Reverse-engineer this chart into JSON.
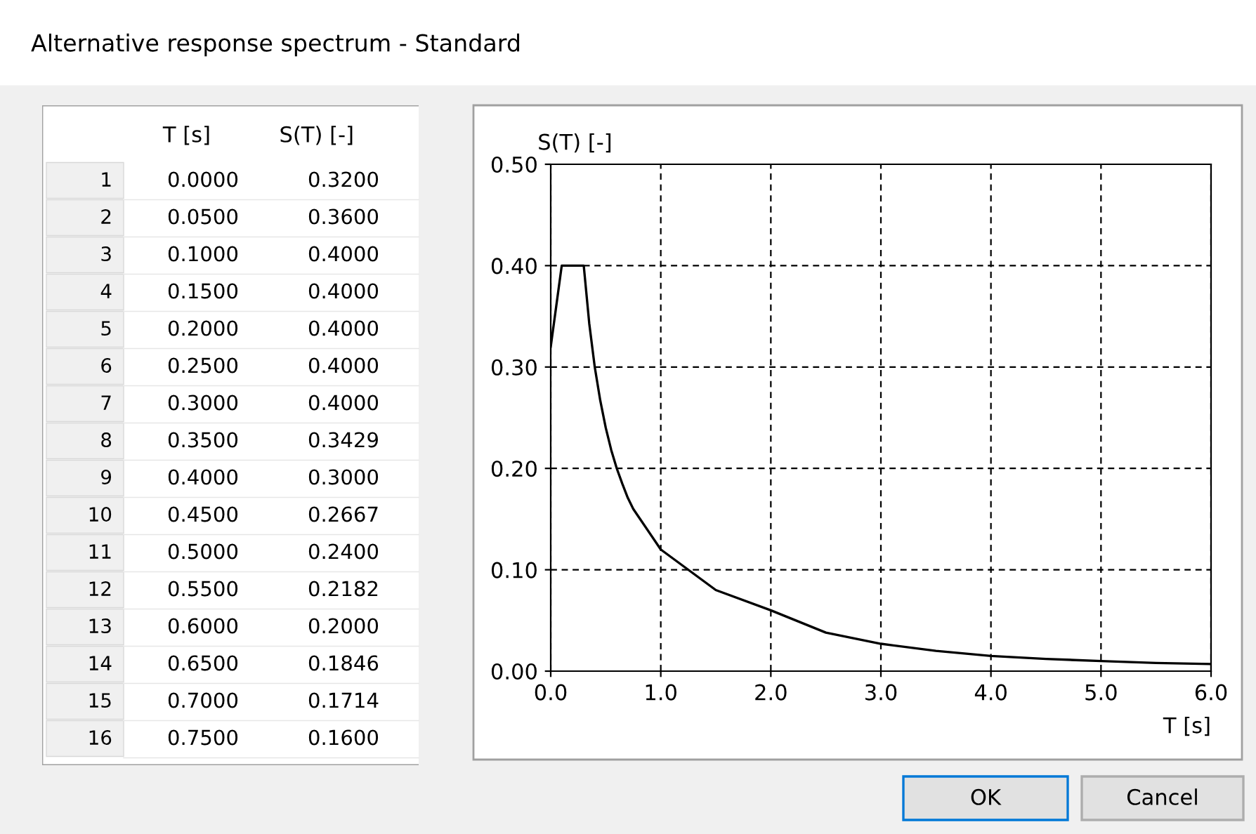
{
  "chart_data": {
    "type": "line",
    "title": "Alternative response spectrum - Standard",
    "xlabel": "T [s]",
    "ylabel": "S(T) [-]",
    "x": [
      0.0,
      0.05,
      0.1,
      0.15,
      0.2,
      0.25,
      0.3,
      0.35,
      0.4,
      0.45,
      0.5,
      0.55,
      0.6,
      0.65,
      0.7,
      0.75,
      1.0,
      1.5,
      2.0,
      2.5,
      3.0,
      3.5,
      4.0,
      4.5,
      5.0,
      5.5,
      6.0
    ],
    "series": [
      {
        "color": "#000000",
        "values": [
          0.32,
          0.36,
          0.4,
          0.4,
          0.4,
          0.4,
          0.4,
          0.343,
          0.3,
          0.267,
          0.24,
          0.218,
          0.2,
          0.185,
          0.171,
          0.16,
          0.12,
          0.08,
          0.06,
          0.038,
          0.027,
          0.02,
          0.015,
          0.012,
          0.01,
          0.008,
          0.007
        ]
      }
    ],
    "xlim": [
      0,
      6
    ],
    "ylim": [
      0,
      0.5
    ],
    "xticks": [
      {
        "value": 0,
        "label": "0.0"
      },
      {
        "value": 1,
        "label": "1.0"
      },
      {
        "value": 2,
        "label": "2.0"
      },
      {
        "value": 3,
        "label": "3.0"
      },
      {
        "value": 4,
        "label": "4.0"
      },
      {
        "value": 5,
        "label": "5.0"
      },
      {
        "value": 6,
        "label": "6.0"
      }
    ],
    "yticks": [
      {
        "value": 0,
        "label": "0.00"
      },
      {
        "value": 0.1,
        "label": "0.10"
      },
      {
        "value": 0.2,
        "label": "0.20"
      },
      {
        "value": 0.3,
        "label": "0.30"
      },
      {
        "value": 0.4,
        "label": "0.40"
      },
      {
        "value": 0.5,
        "label": "0.50"
      }
    ],
    "grid": true,
    "marker": "none",
    "line_style": "solid",
    "annotations": [
      "1",
      "0.0000",
      "0.3200",
      "2",
      "0.0500",
      "0.3600",
      "3",
      "0.1000",
      "0.4000",
      "4",
      "0.1500",
      "0.4000",
      "5",
      "0.2000",
      "0.4000",
      "6",
      "0.2500",
      "0.4000",
      "7",
      "0.3000",
      "0.4000",
      "8",
      "0.3500",
      "0.3429",
      "9",
      "0.4000",
      "0.3000",
      "10",
      "0.4500",
      "0.2667",
      "11",
      "0.5000",
      "0.2400",
      "12",
      "0.5500",
      "0.2182",
      "13",
      "0.6000",
      "0.2000",
      "14",
      "0.6500",
      "0.1846",
      "15",
      "0.7000",
      "0.1714",
      "16",
      "0.7500",
      "0.1600",
      "OK",
      "Cancel"
    ]
  }
}
